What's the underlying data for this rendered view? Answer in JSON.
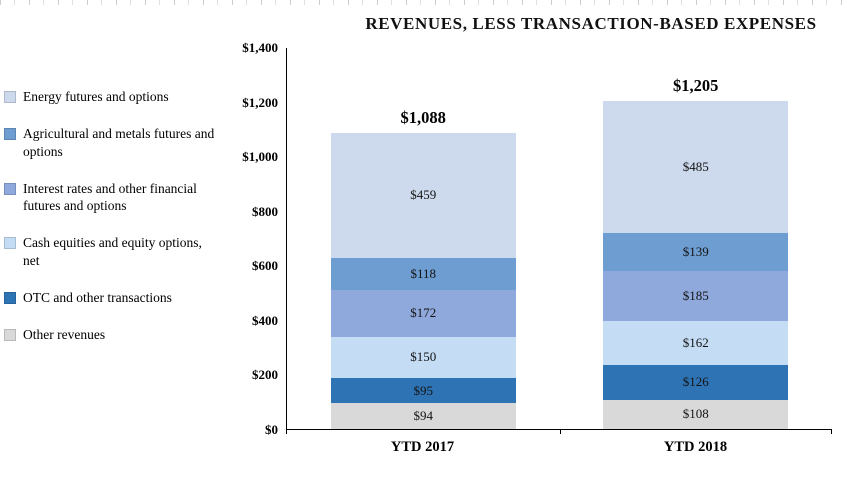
{
  "title": "REVENUES, LESS TRANSACTION-BASED EXPENSES",
  "chart_data": {
    "type": "bar",
    "stacked": true,
    "title": "REVENUES, LESS TRANSACTION-BASED EXPENSES",
    "categories": [
      "YTD 2017",
      "YTD 2018"
    ],
    "series": [
      {
        "name": "Other revenues",
        "color": "#d9d9d9",
        "values": [
          94,
          108
        ]
      },
      {
        "name": "OTC and other transactions",
        "color": "#2e74b5",
        "values": [
          95,
          126
        ]
      },
      {
        "name": "Cash equities and equity options, net",
        "color": "#c5ddf4",
        "values": [
          150,
          162
        ]
      },
      {
        "name": "Interest rates and other financial futures and options",
        "color": "#8fa9dc",
        "values": [
          172,
          185
        ]
      },
      {
        "name": "Agricultural and metals futures and options",
        "color": "#6d9dd1",
        "values": [
          118,
          139
        ]
      },
      {
        "name": "Energy futures and options",
        "color": "#cdd9ec",
        "values": [
          459,
          485
        ]
      }
    ],
    "totals": [
      1088,
      1205
    ],
    "totals_display": [
      "$1,088",
      "$1,205"
    ],
    "y_ticks": [
      "$0",
      "$200",
      "$400",
      "$600",
      "$800",
      "$1,000",
      "$1,200",
      "$1,400"
    ],
    "ylim": [
      0,
      1400
    ],
    "value_prefix": "$",
    "gridlines": false,
    "legend_position": "left",
    "legend_order": [
      "Energy futures and options",
      "Agricultural and metals futures and options",
      "Interest rates and other financial futures and options",
      "Cash equities and equity options, net",
      "OTC and other transactions",
      "Other revenues"
    ],
    "axis_color": "#000000"
  }
}
